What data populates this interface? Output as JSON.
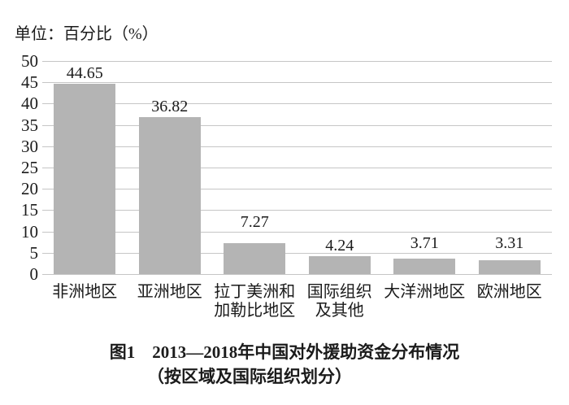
{
  "figure": {
    "unit_label": "单位：百分比（%）",
    "caption_line1": "图1　2013—2018年中国对外援助资金分布情况",
    "caption_line2": "（按区域及国际组织划分）"
  },
  "chart_data": {
    "type": "bar",
    "title": "图1　2013—2018年中国对外援助资金分布情况（按区域及国际组织划分）",
    "unit_label": "单位：百分比（%）",
    "categories": [
      "非洲地区",
      "亚洲地区",
      "拉丁美洲和\n加勒比地区",
      "国际组织\n及其他",
      "大洋洲地区",
      "欧洲地区"
    ],
    "values": [
      44.65,
      36.82,
      7.27,
      4.24,
      3.71,
      3.31
    ],
    "value_labels": [
      "44.65",
      "36.82",
      "7.27",
      "4.24",
      "3.71",
      "3.31"
    ],
    "xlabel": "",
    "ylabel": "百分比（%）",
    "ylim": [
      0,
      50
    ],
    "yticks": [
      0,
      5,
      10,
      15,
      20,
      25,
      30,
      35,
      40,
      45,
      50
    ],
    "grid": true,
    "legend_position": "none",
    "bar_color": "#b4b4b4",
    "grid_color": "#c6c6c6",
    "text_color": "#1b1b1b",
    "background_color": "#ffffff"
  }
}
